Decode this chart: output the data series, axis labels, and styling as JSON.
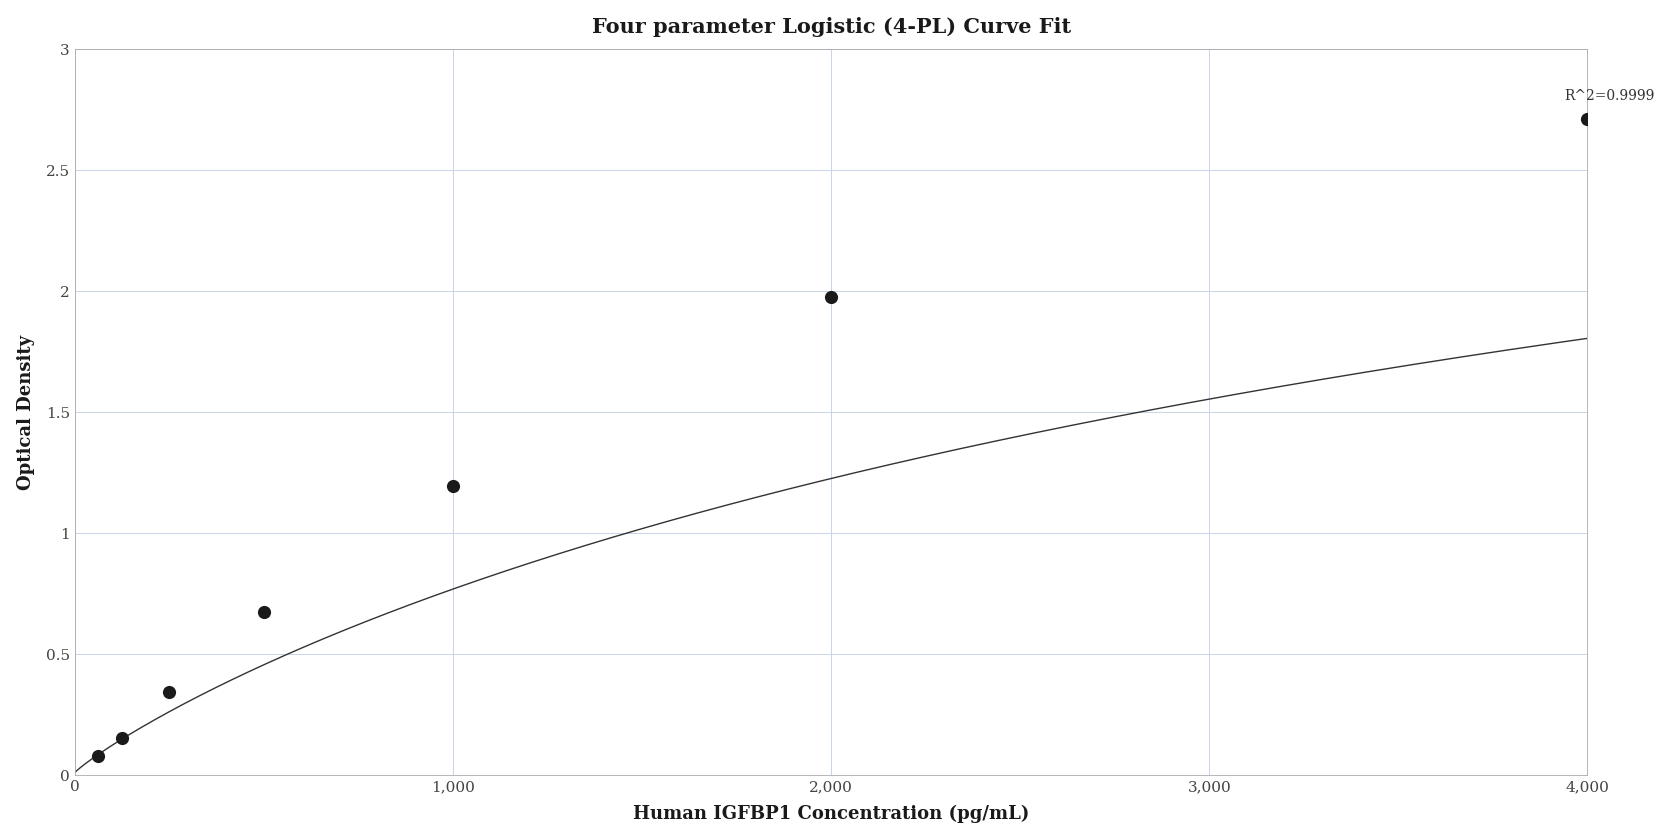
{
  "title": "Four parameter Logistic (4-PL) Curve Fit",
  "xlabel": "Human IGFBP1 Concentration (pg/mL)",
  "ylabel": "Optical Density",
  "r_squared": "R^2=0.9999",
  "data_points_x": [
    62.5,
    125,
    250,
    500,
    1000,
    2000,
    4000
  ],
  "data_points_y": [
    0.08,
    0.155,
    0.345,
    0.675,
    1.195,
    1.975,
    2.71
  ],
  "xlim": [
    0,
    4000
  ],
  "ylim": [
    0,
    3.0
  ],
  "xticks": [
    0,
    1000,
    2000,
    3000,
    4000
  ],
  "yticks": [
    0,
    0.5,
    1.0,
    1.5,
    2.0,
    2.5,
    3.0
  ],
  "curve_color": "#333333",
  "dot_color": "#1a1a1a",
  "grid_color": "#c8d4e8",
  "background_color": "#ffffff",
  "title_fontsize": 15,
  "axis_label_fontsize": 13,
  "tick_fontsize": 11,
  "annotation_fontsize": 10,
  "ytick_labels": [
    "0",
    "0.5",
    "1",
    "1.5",
    "2",
    "2.5",
    "3"
  ]
}
